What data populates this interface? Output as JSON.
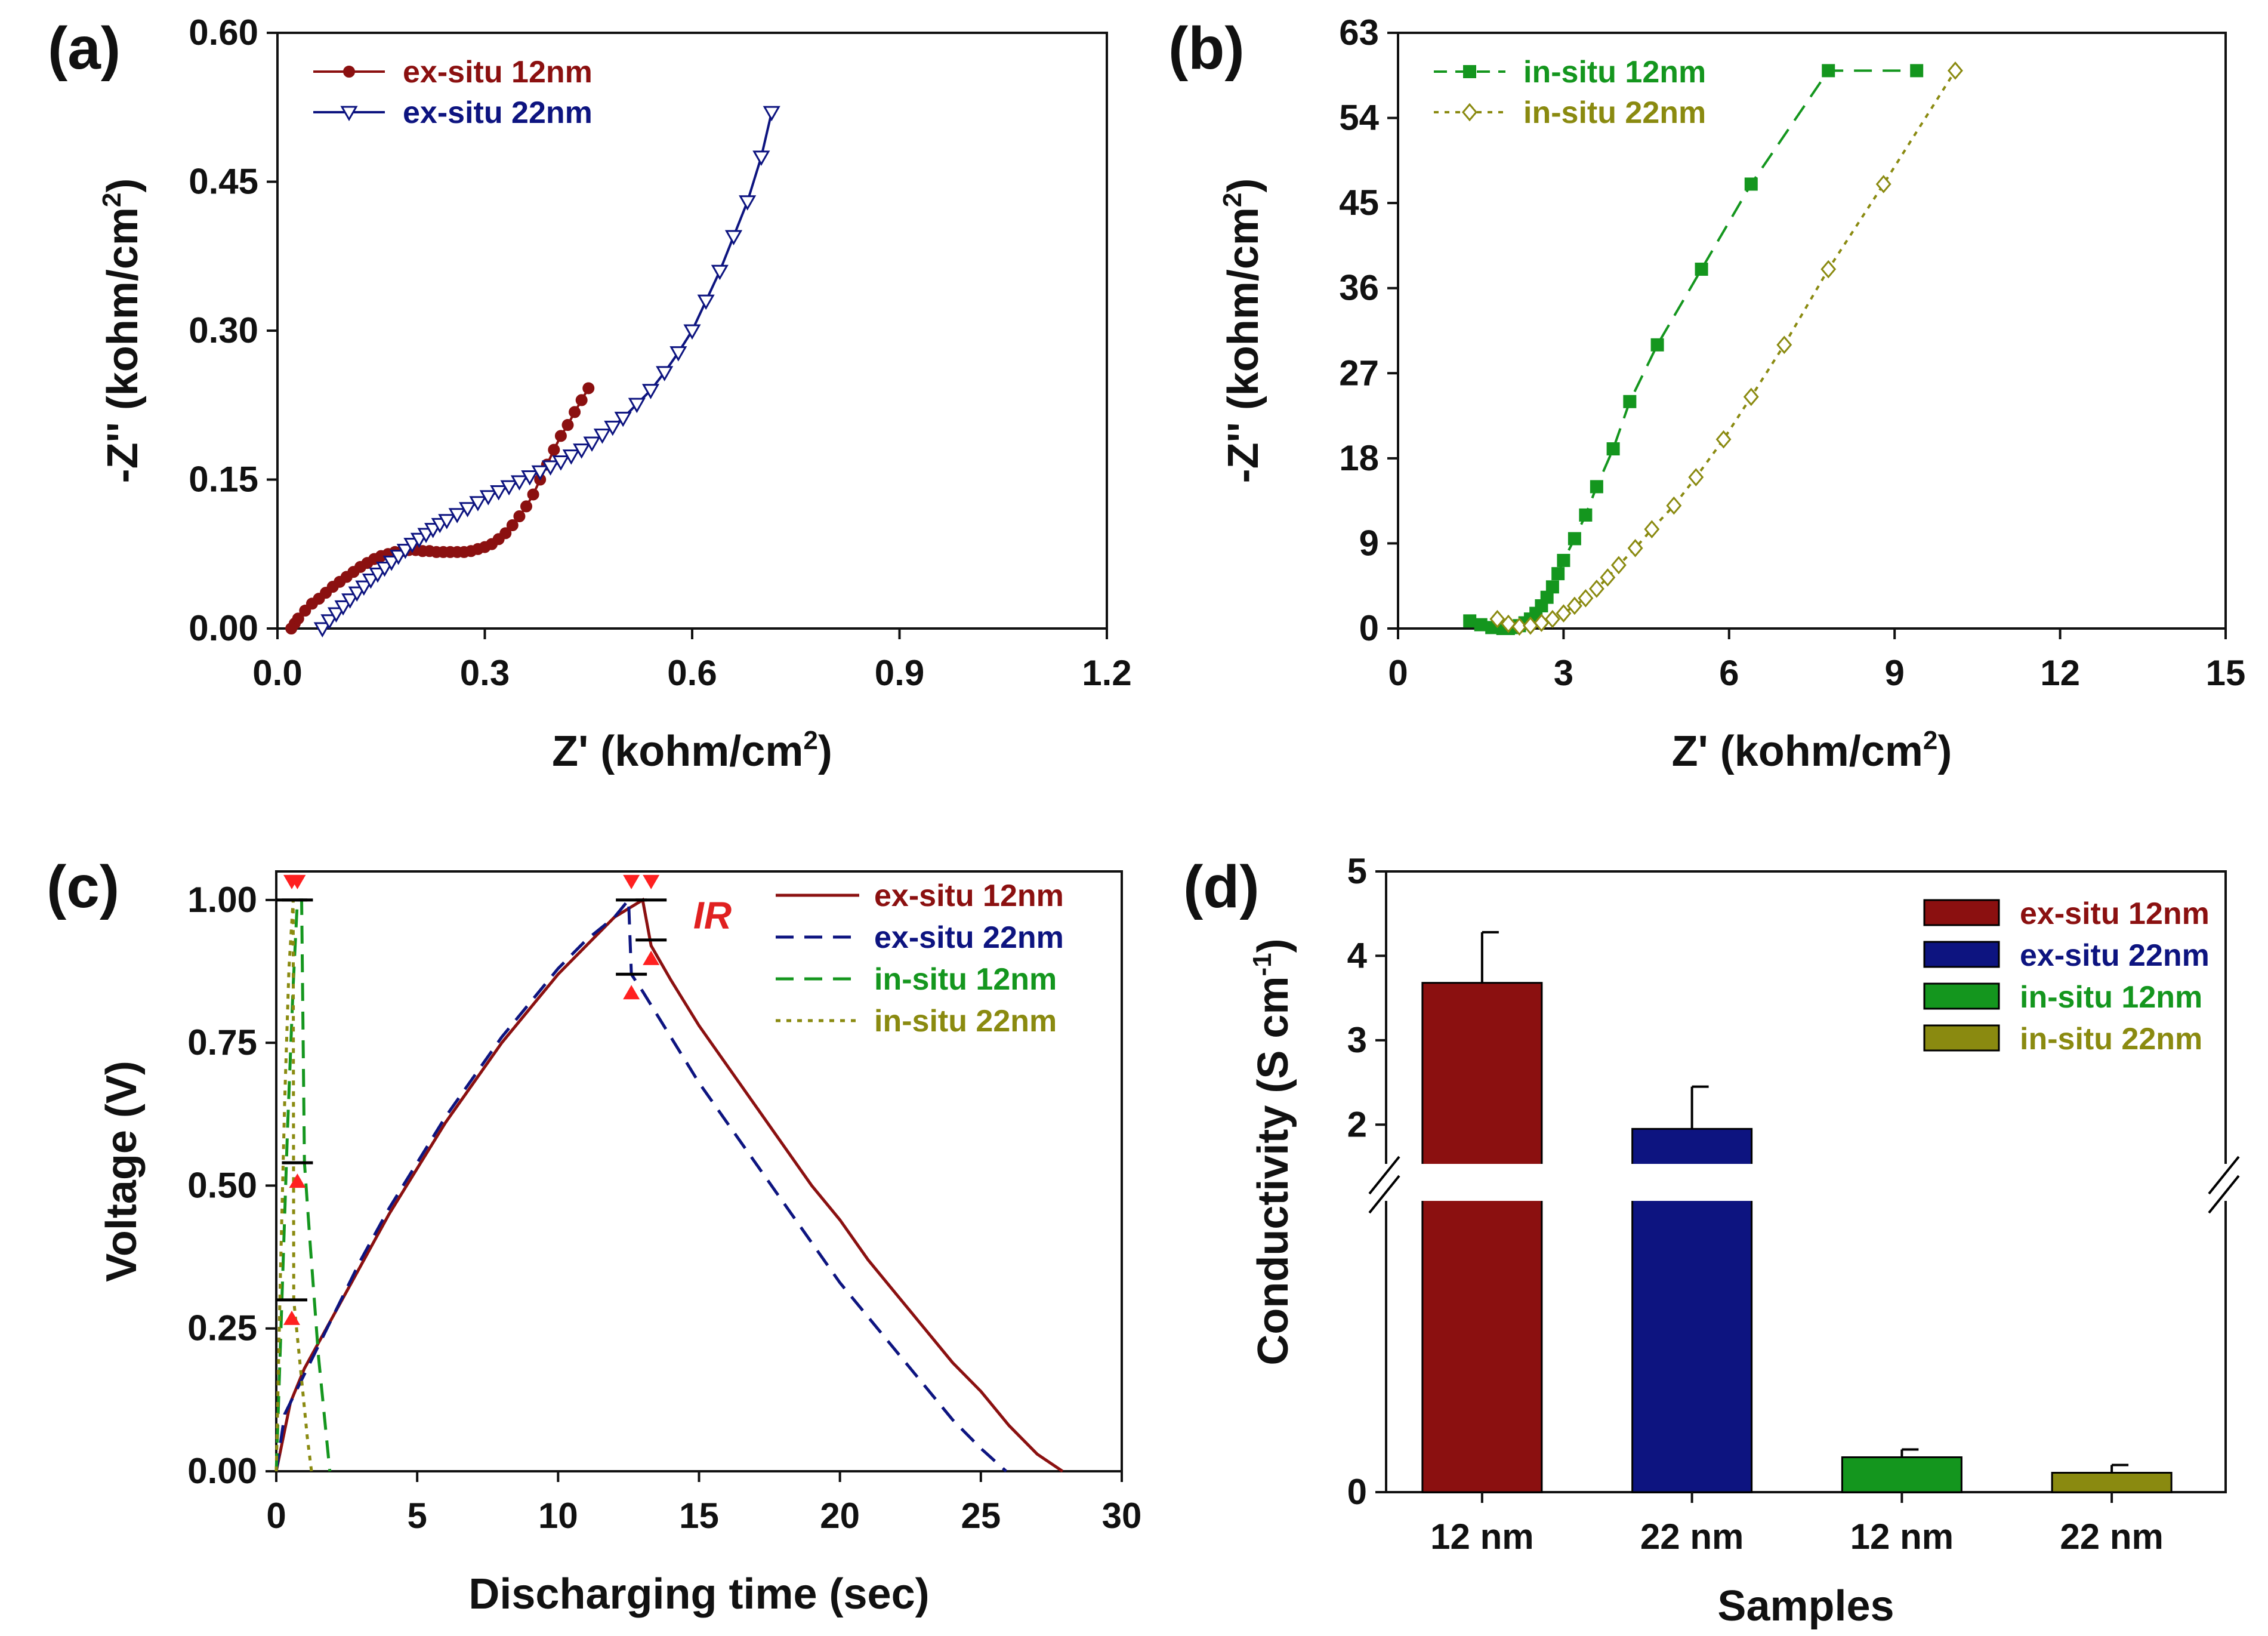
{
  "colors": {
    "ex12": "#8b1010",
    "ex22": "#0d1480",
    "in12": "#14961e",
    "in22": "#8a8a10",
    "ir": "#ff2020",
    "axis": "#111111"
  },
  "chart_data": [
    {
      "id": "a",
      "panel_label": "(a)",
      "type": "scatter",
      "xlabel_main": "Z' (kohm/cm",
      "xlabel_sup": "2",
      "xlabel_end": ")",
      "ylabel_main": "-Z'' (kohm/cm",
      "ylabel_sup": "2",
      "ylabel_end": ")",
      "xlim": [
        0,
        1.2
      ],
      "ylim": [
        0,
        0.6
      ],
      "xticks": [
        "0.0",
        "0.3",
        "0.6",
        "0.9",
        "1.2"
      ],
      "yticks": [
        "0.00",
        "0.15",
        "0.30",
        "0.45",
        "0.60"
      ],
      "legend_position": "top-left",
      "series": [
        {
          "name": "ex-situ 12nm",
          "color_key": "ex12",
          "marker": "filled-circle",
          "line": "solid",
          "x": [
            0.02,
            0.025,
            0.03,
            0.04,
            0.05,
            0.06,
            0.07,
            0.08,
            0.09,
            0.1,
            0.11,
            0.12,
            0.13,
            0.14,
            0.15,
            0.16,
            0.17,
            0.18,
            0.19,
            0.2,
            0.21,
            0.22,
            0.23,
            0.24,
            0.25,
            0.26,
            0.27,
            0.28,
            0.29,
            0.3,
            0.31,
            0.32,
            0.33,
            0.34,
            0.35,
            0.36,
            0.37,
            0.38,
            0.39,
            0.4,
            0.41,
            0.42,
            0.43,
            0.44,
            0.45
          ],
          "y": [
            0.0,
            0.005,
            0.01,
            0.018,
            0.025,
            0.03,
            0.036,
            0.042,
            0.047,
            0.052,
            0.057,
            0.062,
            0.066,
            0.07,
            0.073,
            0.075,
            0.077,
            0.078,
            0.079,
            0.079,
            0.078,
            0.078,
            0.077,
            0.077,
            0.077,
            0.077,
            0.077,
            0.078,
            0.08,
            0.082,
            0.085,
            0.09,
            0.096,
            0.104,
            0.113,
            0.123,
            0.135,
            0.15,
            0.165,
            0.18,
            0.194,
            0.205,
            0.218,
            0.23,
            0.242
          ]
        },
        {
          "name": "ex-situ 22nm",
          "color_key": "ex22",
          "marker": "open-triangle-down",
          "line": "solid",
          "x": [
            0.065,
            0.075,
            0.085,
            0.095,
            0.105,
            0.115,
            0.125,
            0.135,
            0.145,
            0.155,
            0.165,
            0.175,
            0.185,
            0.195,
            0.205,
            0.215,
            0.225,
            0.235,
            0.245,
            0.26,
            0.275,
            0.29,
            0.305,
            0.32,
            0.335,
            0.35,
            0.365,
            0.38,
            0.395,
            0.41,
            0.425,
            0.44,
            0.455,
            0.47,
            0.485,
            0.5,
            0.52,
            0.54,
            0.56,
            0.58,
            0.6,
            0.62,
            0.64,
            0.66,
            0.68,
            0.7,
            0.715
          ],
          "y": [
            0.0,
            0.008,
            0.015,
            0.022,
            0.029,
            0.036,
            0.042,
            0.049,
            0.055,
            0.061,
            0.067,
            0.073,
            0.079,
            0.085,
            0.09,
            0.095,
            0.1,
            0.105,
            0.109,
            0.115,
            0.121,
            0.127,
            0.133,
            0.138,
            0.143,
            0.148,
            0.153,
            0.158,
            0.163,
            0.168,
            0.174,
            0.18,
            0.187,
            0.195,
            0.203,
            0.212,
            0.226,
            0.24,
            0.258,
            0.278,
            0.3,
            0.33,
            0.36,
            0.395,
            0.43,
            0.475,
            0.52
          ]
        }
      ]
    },
    {
      "id": "b",
      "panel_label": "(b)",
      "type": "scatter",
      "xlabel_main": "Z' (kohm/cm",
      "xlabel_sup": "2",
      "xlabel_end": ")",
      "ylabel_main": "-Z'' (kohm/cm",
      "ylabel_sup": "2",
      "ylabel_end": ")",
      "xlim": [
        0,
        15
      ],
      "ylim": [
        0,
        63
      ],
      "xticks": [
        "0",
        "3",
        "6",
        "9",
        "12",
        "15"
      ],
      "yticks": [
        "0",
        "9",
        "18",
        "27",
        "36",
        "45",
        "54",
        "63"
      ],
      "legend_position": "top-left",
      "series": [
        {
          "name": "in-situ 12nm",
          "color_key": "in12",
          "marker": "filled-square",
          "line": "dashed",
          "x": [
            1.3,
            1.5,
            1.7,
            1.9,
            2.0,
            2.1,
            2.2,
            2.3,
            2.4,
            2.5,
            2.6,
            2.7,
            2.8,
            2.9,
            3.0,
            3.2,
            3.4,
            3.6,
            3.9,
            4.2,
            4.7,
            5.5,
            6.4,
            7.8,
            9.4
          ],
          "y": [
            0.8,
            0.4,
            0.1,
            0.0,
            0.0,
            0.1,
            0.3,
            0.6,
            1.0,
            1.6,
            2.4,
            3.3,
            4.4,
            5.8,
            7.2,
            9.5,
            12.0,
            15.0,
            19.0,
            24.0,
            30.0,
            38.0,
            47.0,
            59.0,
            59.0
          ]
        },
        {
          "name": "in-situ 22nm",
          "color_key": "in22",
          "marker": "open-diamond",
          "line": "dotted",
          "x": [
            1.8,
            2.0,
            2.2,
            2.4,
            2.6,
            2.8,
            3.0,
            3.2,
            3.4,
            3.6,
            3.8,
            4.0,
            4.3,
            4.6,
            5.0,
            5.4,
            5.9,
            6.4,
            7.0,
            7.8,
            8.8,
            10.1
          ],
          "y": [
            1.0,
            0.5,
            0.2,
            0.3,
            0.6,
            1.0,
            1.6,
            2.4,
            3.2,
            4.2,
            5.4,
            6.7,
            8.5,
            10.5,
            13.0,
            16.0,
            20.0,
            24.5,
            30.0,
            38.0,
            47.0,
            59.0
          ]
        }
      ]
    },
    {
      "id": "c",
      "panel_label": "(c)",
      "type": "line",
      "xlabel": "Discharging time (sec)",
      "ylabel": "Voltage (V)",
      "xlim": [
        0,
        30
      ],
      "ylim": [
        0,
        1.05
      ],
      "xticks": [
        "0",
        "5",
        "10",
        "15",
        "20",
        "25",
        "30"
      ],
      "yticks": [
        "0.00",
        "0.25",
        "0.50",
        "0.75",
        "1.00"
      ],
      "legend_position": "top-right",
      "annotation": "IR",
      "series": [
        {
          "name": "ex-situ 12nm",
          "color_key": "ex12",
          "line": "solid",
          "x": [
            0,
            0.5,
            1,
            2,
            3,
            4,
            5,
            6,
            7,
            8,
            9,
            10,
            11,
            12,
            13.0,
            13.3,
            14,
            15,
            16,
            17,
            18,
            19,
            20,
            21,
            22,
            23,
            24,
            25,
            26,
            27,
            27.9
          ],
          "y": [
            0,
            0.12,
            0.18,
            0.27,
            0.36,
            0.45,
            0.53,
            0.61,
            0.68,
            0.75,
            0.81,
            0.87,
            0.92,
            0.97,
            1.0,
            0.92,
            0.86,
            0.78,
            0.71,
            0.64,
            0.57,
            0.5,
            0.44,
            0.37,
            0.31,
            0.25,
            0.19,
            0.14,
            0.08,
            0.03,
            0.0
          ]
        },
        {
          "name": "ex-situ 22nm",
          "color_key": "ex22",
          "line": "dashed",
          "x": [
            0,
            0.3,
            1,
            2,
            3,
            4,
            5,
            6,
            7,
            8,
            9,
            10,
            11,
            12,
            12.5,
            12.6,
            13,
            14,
            15,
            16,
            17,
            18,
            19,
            20,
            21,
            22,
            23,
            24,
            25,
            25.9
          ],
          "y": [
            0,
            0.1,
            0.17,
            0.27,
            0.37,
            0.46,
            0.54,
            0.62,
            0.69,
            0.76,
            0.82,
            0.88,
            0.93,
            0.97,
            1.0,
            0.87,
            0.84,
            0.76,
            0.68,
            0.61,
            0.54,
            0.47,
            0.4,
            0.33,
            0.27,
            0.21,
            0.15,
            0.09,
            0.04,
            0.0
          ]
        },
        {
          "name": "in-situ 12nm",
          "color_key": "in12",
          "line": "dashed",
          "x": [
            0,
            0.2,
            0.4,
            0.6,
            0.75,
            0.9,
            1.0,
            1.2,
            1.5,
            1.9
          ],
          "y": [
            0,
            0.3,
            0.6,
            0.85,
            1.0,
            1.0,
            0.54,
            0.4,
            0.2,
            0.0
          ]
        },
        {
          "name": "in-situ 22nm",
          "color_key": "in22",
          "line": "dotted",
          "x": [
            0,
            0.15,
            0.3,
            0.45,
            0.6,
            0.62,
            0.7,
            0.9,
            1.1,
            1.25
          ],
          "y": [
            0,
            0.35,
            0.65,
            0.88,
            1.0,
            0.3,
            0.26,
            0.16,
            0.06,
            0.0
          ]
        }
      ],
      "ir_marks": [
        {
          "x": 0.75,
          "y_top": 1.0,
          "y_bottom": 0.54
        },
        {
          "x": 0.55,
          "y_top": 1.0,
          "y_bottom": 0.3
        },
        {
          "x": 12.6,
          "y_top": 1.0,
          "y_bottom": 0.87
        },
        {
          "x": 13.3,
          "y_top": 1.0,
          "y_bottom": 0.93
        }
      ]
    },
    {
      "id": "d",
      "panel_label": "(d)",
      "type": "bar",
      "xlabel": "Samples",
      "ylabel_main": "Conductivity (S cm",
      "ylabel_sup": "-1",
      "ylabel_end": ")",
      "categories": [
        "12 nm",
        "22 nm",
        "12 nm",
        "22 nm"
      ],
      "values": [
        3.68,
        1.95,
        0.09,
        0.05
      ],
      "errors": [
        0.6,
        0.5,
        0.02,
        0.02
      ],
      "series_names": [
        "ex-situ 12nm",
        "ex-situ 22nm",
        "in-situ 12nm",
        "in-situ 22nm"
      ],
      "color_keys": [
        "ex12",
        "ex22",
        "in12",
        "in22"
      ],
      "yticks": [
        "0",
        "2",
        "3",
        "4",
        "5"
      ],
      "ytick_values": [
        0,
        2,
        3,
        4,
        5
      ],
      "y_axis_break": [
        0.2,
        1.5
      ],
      "ylim": [
        0,
        5
      ],
      "legend_position": "top-right"
    }
  ]
}
